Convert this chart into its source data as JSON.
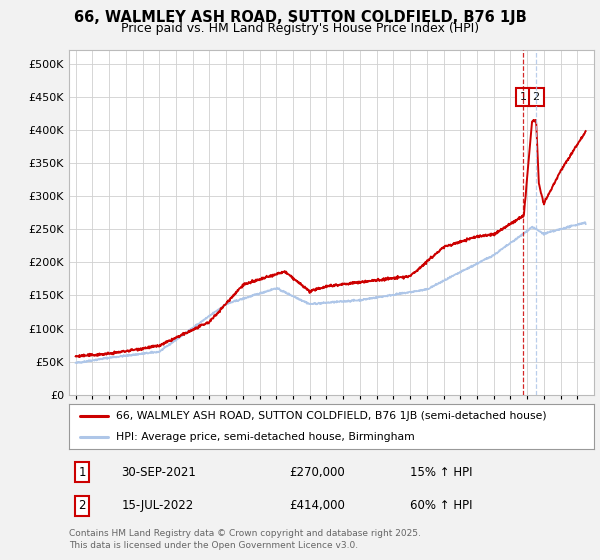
{
  "title": "66, WALMLEY ASH ROAD, SUTTON COLDFIELD, B76 1JB",
  "subtitle": "Price paid vs. HM Land Registry's House Price Index (HPI)",
  "legend_line1": "66, WALMLEY ASH ROAD, SUTTON COLDFIELD, B76 1JB (semi-detached house)",
  "legend_line2": "HPI: Average price, semi-detached house, Birmingham",
  "annotation1_label": "1",
  "annotation1_date": "30-SEP-2021",
  "annotation1_price": "£270,000",
  "annotation1_hpi": "15% ↑ HPI",
  "annotation2_label": "2",
  "annotation2_date": "15-JUL-2022",
  "annotation2_price": "£414,000",
  "annotation2_hpi": "60% ↑ HPI",
  "footer": "Contains HM Land Registry data © Crown copyright and database right 2025.\nThis data is licensed under the Open Government Licence v3.0.",
  "hpi_color": "#aec6e8",
  "price_color": "#cc0000",
  "dashed_color": "#cc0000",
  "dashed_color2": "#aec6e8",
  "background_color": "#f2f2f2",
  "plot_background": "#ffffff",
  "ylim": [
    0,
    520000
  ],
  "yticks": [
    0,
    50000,
    100000,
    150000,
    200000,
    250000,
    300000,
    350000,
    400000,
    450000,
    500000
  ],
  "year_start": 1995,
  "year_end": 2025,
  "sale1_year": 2021.75,
  "sale1_price": 270000,
  "sale2_year": 2022.54,
  "sale2_price": 414000
}
